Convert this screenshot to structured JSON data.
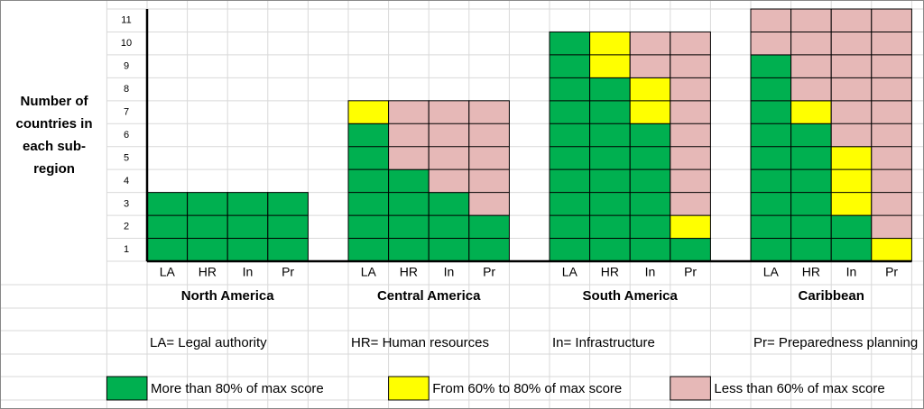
{
  "chart_data": {
    "type": "stacked-cells",
    "ylabel": [
      "Number of",
      "countries in",
      "each sub-",
      "region"
    ],
    "ylim": [
      0,
      11
    ],
    "yticks": [
      {
        "value": 0.5,
        "label": "1"
      },
      {
        "value": 1.5,
        "label": "2"
      },
      {
        "value": 2.5,
        "label": "3"
      },
      {
        "value": 3.5,
        "label": "4"
      },
      {
        "value": 4.5,
        "label": "5"
      },
      {
        "value": 5.5,
        "label": "6"
      },
      {
        "value": 6.5,
        "label": "7"
      },
      {
        "value": 7.5,
        "label": "8"
      },
      {
        "value": 8.5,
        "label": "9"
      },
      {
        "value": 9.5,
        "label": "10"
      },
      {
        "value": 10.5,
        "label": "11"
      }
    ],
    "groups": [
      "North America",
      "Central America",
      "South America",
      "Caribbean"
    ],
    "categories": [
      "LA",
      "HR",
      "In",
      "Pr",
      "LA",
      "HR",
      "In",
      "Pr",
      "LA",
      "HR",
      "In",
      "Pr",
      "LA",
      "HR",
      "In",
      "Pr"
    ],
    "series": [
      {
        "name": "More than 80% of max score",
        "color": "#00b050",
        "values": [
          3,
          3,
          3,
          3,
          6,
          4,
          3,
          2,
          10,
          8,
          6,
          1,
          9,
          6,
          2,
          0
        ]
      },
      {
        "name": "From 60% to 80% of max score",
        "color": "#ffff00",
        "values": [
          0,
          0,
          0,
          0,
          1,
          0,
          0,
          0,
          0,
          2,
          2,
          1,
          0,
          1,
          3,
          1
        ]
      },
      {
        "name": "Less than 60% of max score",
        "color": "#e6b8b7",
        "values": [
          0,
          0,
          0,
          0,
          0,
          3,
          4,
          5,
          0,
          0,
          2,
          8,
          2,
          4,
          6,
          10
        ]
      }
    ],
    "key": [
      "LA= Legal authority",
      "HR= Human resources",
      "In= Infrastructure",
      "Pr= Preparedness planning"
    ]
  }
}
